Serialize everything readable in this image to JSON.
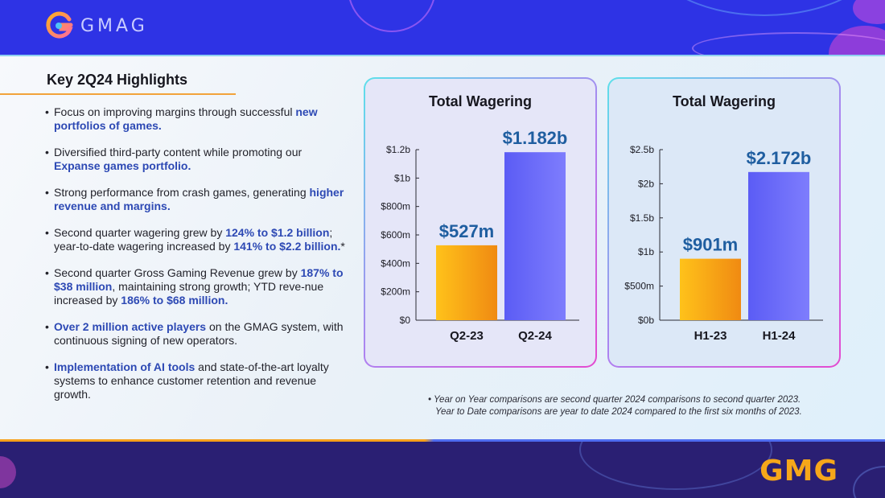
{
  "header": {
    "logo_text": "GMAG",
    "logo_icon": "gmag-logo-icon"
  },
  "highlights": {
    "title": "Key 2Q24 Highlights",
    "bullets": [
      {
        "parts": [
          {
            "t": "Focus on improving margins through successful ",
            "h": false
          },
          {
            "t": "new portfolios of games.",
            "h": true
          }
        ]
      },
      {
        "parts": [
          {
            "t": "Diversified third-party content while promoting our ",
            "h": false
          },
          {
            "t": "Expanse games portfolio.",
            "h": true
          }
        ]
      },
      {
        "parts": [
          {
            "t": "Strong performance from crash games, generating ",
            "h": false
          },
          {
            "t": "higher revenue and margins.",
            "h": true
          }
        ]
      },
      {
        "parts": [
          {
            "t": "Second quarter wagering grew by ",
            "h": false
          },
          {
            "t": "124% to $1.2 billion",
            "h": true
          },
          {
            "t": "; year-to-date wagering increased by ",
            "h": false
          },
          {
            "t": "141% to $2.2 billion.",
            "h": true
          },
          {
            "t": "*",
            "h": false
          }
        ]
      },
      {
        "parts": [
          {
            "t": "Second quarter Gross Gaming Revenue grew by ",
            "h": false
          },
          {
            "t": "187% to $38 million",
            "h": true
          },
          {
            "t": ", maintaining strong growth; YTD reve-nue increased by ",
            "h": false
          },
          {
            "t": "186% to $68 million.",
            "h": true
          }
        ]
      },
      {
        "parts": [
          {
            "t": "Over 2 million active players",
            "h": true
          },
          {
            "t": " on the GMAG system, with continuous signing of new operators.",
            "h": false
          }
        ]
      },
      {
        "parts": [
          {
            "t": "Implementation of AI tools",
            "h": true
          },
          {
            "t": " and state-of-the-art loyalty systems to enhance customer retention and revenue growth.",
            "h": false
          }
        ]
      }
    ]
  },
  "chart_data": [
    {
      "type": "bar",
      "title": "Total Wagering",
      "categories": [
        "Q2-23",
        "Q2-24"
      ],
      "values": [
        527,
        1182
      ],
      "data_labels": [
        "$527m",
        "$1.182b"
      ],
      "ylim": [
        0,
        1200
      ],
      "yticks": [
        0,
        200,
        400,
        600,
        800,
        1000,
        1200
      ],
      "ytick_labels": [
        "$0",
        "$200m",
        "$400m",
        "$600m",
        "$800m",
        "$1b",
        "$1.2b"
      ],
      "bar_colors": [
        [
          "#ffc21a",
          "#f08a12"
        ],
        [
          "#5b5cf5",
          "#7e7dfd"
        ]
      ],
      "label_color": "#1f5ea0",
      "background": "#e5e6f8"
    },
    {
      "type": "bar",
      "title": "Total Wagering",
      "categories": [
        "H1-23",
        "H1-24"
      ],
      "values": [
        901,
        2172
      ],
      "data_labels": [
        "$901m",
        "$2.172b"
      ],
      "ylim": [
        0,
        2500
      ],
      "yticks": [
        0,
        500,
        1000,
        1500,
        2000,
        2500
      ],
      "ytick_labels": [
        "$0b",
        "$500m",
        "$1b",
        "$1.5b",
        "$2b",
        "$2.5b"
      ],
      "bar_colors": [
        [
          "#ffc21a",
          "#f08a12"
        ],
        [
          "#5b5cf5",
          "#7e7dfd"
        ]
      ],
      "label_color": "#1f5ea0",
      "background": "#dce8f7"
    }
  ],
  "footnote": {
    "line1": "• Year on Year comparisons are second quarter 2024 comparisons to second quarter 2023.",
    "line2": "Year to Date comparisons are year to date 2024 compared to the first six months of 2023."
  },
  "footer": {
    "logo_text": "GMG"
  }
}
